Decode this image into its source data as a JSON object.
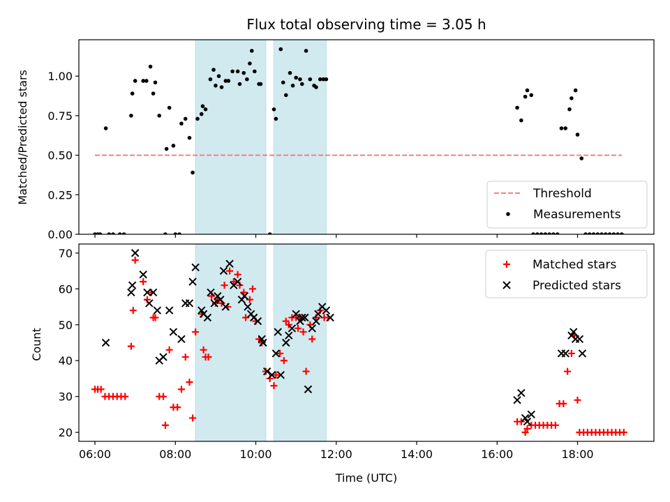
{
  "chart_data": [
    {
      "type": "scatter",
      "title": "Flux total observing time = 3.05 h",
      "ylabel": "Matched/Predicted stars",
      "xlim": [
        5.6,
        19.9
      ],
      "ylim": [
        0,
        1.23
      ],
      "yticks": [
        0.0,
        0.25,
        0.5,
        0.75,
        1.0
      ],
      "ytick_labels": [
        "0.00",
        "0.25",
        "0.50",
        "0.75",
        "1.00"
      ],
      "xticks": [
        6,
        8,
        10,
        12,
        14,
        16,
        18
      ],
      "shaded_intervals": [
        [
          8.5,
          10.25
        ],
        [
          10.45,
          11.75
        ]
      ],
      "shade_color": "#d1eaf0",
      "legend_position": "lower-right",
      "threshold": {
        "name": "Threshold",
        "x": [
          6.0,
          19.1
        ],
        "y": 0.5,
        "color": "#f08080"
      },
      "series": [
        {
          "name": "Measurements",
          "color": "#000000",
          "points": [
            [
              6.0,
              0
            ],
            [
              6.07,
              0
            ],
            [
              6.13,
              0
            ],
            [
              6.27,
              0.67
            ],
            [
              6.35,
              0
            ],
            [
              6.45,
              0
            ],
            [
              6.62,
              0
            ],
            [
              6.72,
              0
            ],
            [
              6.9,
              0.75
            ],
            [
              6.93,
              0.89
            ],
            [
              7.0,
              0.97
            ],
            [
              7.2,
              0.97
            ],
            [
              7.28,
              0.97
            ],
            [
              7.38,
              1.06
            ],
            [
              7.45,
              0.89
            ],
            [
              7.5,
              0.96
            ],
            [
              7.6,
              0.75
            ],
            [
              7.75,
              0
            ],
            [
              7.78,
              0.54
            ],
            [
              7.85,
              0.8
            ],
            [
              7.95,
              0.56
            ],
            [
              8.0,
              0
            ],
            [
              8.1,
              0
            ],
            [
              8.15,
              0.7
            ],
            [
              8.25,
              0.73
            ],
            [
              8.35,
              0.61
            ],
            [
              8.43,
              0.39
            ],
            [
              8.55,
              0.73
            ],
            [
              8.65,
              0.76
            ],
            [
              8.68,
              0.81
            ],
            [
              8.75,
              0.79
            ],
            [
              8.87,
              0.98
            ],
            [
              8.95,
              1.04
            ],
            [
              9.0,
              0.94
            ],
            [
              9.08,
              1.0
            ],
            [
              9.15,
              0.93
            ],
            [
              9.25,
              0.97
            ],
            [
              9.32,
              0.97
            ],
            [
              9.42,
              1.03
            ],
            [
              9.55,
              1.03
            ],
            [
              9.6,
              0.95
            ],
            [
              9.7,
              1.02
            ],
            [
              9.78,
              0.98
            ],
            [
              9.85,
              1.08
            ],
            [
              9.9,
              1.16
            ],
            [
              9.97,
              1.03
            ],
            [
              10.08,
              0.95
            ],
            [
              10.12,
              0.95
            ],
            [
              10.35,
              0
            ],
            [
              10.45,
              0.79
            ],
            [
              10.5,
              0.73
            ],
            [
              10.62,
              1.17
            ],
            [
              10.68,
              0.96
            ],
            [
              10.75,
              0.88
            ],
            [
              10.85,
              1.02
            ],
            [
              10.92,
              0.94
            ],
            [
              11.0,
              0.99
            ],
            [
              11.1,
              0.98
            ],
            [
              11.15,
              0.95
            ],
            [
              11.25,
              1.16
            ],
            [
              11.35,
              0.98
            ],
            [
              11.45,
              0.94
            ],
            [
              11.5,
              0.93
            ],
            [
              11.6,
              0.98
            ],
            [
              11.68,
              0.98
            ],
            [
              11.75,
              0.98
            ],
            [
              16.5,
              0.8
            ],
            [
              16.6,
              0.72
            ],
            [
              16.7,
              0.87
            ],
            [
              16.75,
              0.91
            ],
            [
              16.85,
              0.88
            ],
            [
              16.9,
              0
            ],
            [
              17.0,
              0
            ],
            [
              17.1,
              0
            ],
            [
              17.2,
              0
            ],
            [
              17.3,
              0
            ],
            [
              17.4,
              0
            ],
            [
              17.5,
              0
            ],
            [
              17.6,
              0.67
            ],
            [
              17.7,
              0.67
            ],
            [
              17.8,
              0.79
            ],
            [
              17.85,
              0.86
            ],
            [
              17.95,
              0.91
            ],
            [
              18.0,
              0.63
            ],
            [
              18.1,
              0.48
            ],
            [
              18.2,
              0
            ],
            [
              18.3,
              0
            ],
            [
              18.4,
              0
            ],
            [
              18.5,
              0
            ],
            [
              18.6,
              0
            ],
            [
              18.7,
              0
            ],
            [
              18.8,
              0
            ],
            [
              18.9,
              0
            ],
            [
              19.0,
              0
            ],
            [
              19.1,
              0
            ]
          ]
        }
      ]
    },
    {
      "type": "scatter",
      "xlabel": "Time (UTC)",
      "ylabel": "Count",
      "xlim": [
        5.6,
        19.9
      ],
      "ylim": [
        17.5,
        72.5
      ],
      "yticks": [
        20,
        30,
        40,
        50,
        60,
        70
      ],
      "xticks": [
        6,
        8,
        10,
        12,
        14,
        16,
        18
      ],
      "xtick_labels": [
        "06:00",
        "08:00",
        "10:00",
        "12:00",
        "14:00",
        "16:00",
        "18:00"
      ],
      "shaded_intervals": [
        [
          8.5,
          10.25
        ],
        [
          10.45,
          11.75
        ]
      ],
      "shade_color": "#d1eaf0",
      "legend_position": "upper-right",
      "series": [
        {
          "name": "Matched stars",
          "color": "#ff0000",
          "marker": "plus",
          "points": [
            [
              6.0,
              32
            ],
            [
              6.07,
              32
            ],
            [
              6.15,
              32
            ],
            [
              6.25,
              30
            ],
            [
              6.35,
              30
            ],
            [
              6.45,
              30
            ],
            [
              6.55,
              30
            ],
            [
              6.65,
              30
            ],
            [
              6.75,
              30
            ],
            [
              6.9,
              44
            ],
            [
              6.95,
              54
            ],
            [
              7.0,
              68
            ],
            [
              7.2,
              62
            ],
            [
              7.3,
              57
            ],
            [
              7.4,
              59
            ],
            [
              7.45,
              52
            ],
            [
              7.5,
              52
            ],
            [
              7.6,
              30
            ],
            [
              7.7,
              30
            ],
            [
              7.75,
              22
            ],
            [
              7.85,
              43
            ],
            [
              7.95,
              27
            ],
            [
              8.05,
              27
            ],
            [
              8.15,
              32
            ],
            [
              8.25,
              41
            ],
            [
              8.35,
              34
            ],
            [
              8.43,
              24
            ],
            [
              8.5,
              48
            ],
            [
              8.65,
              53
            ],
            [
              8.7,
              43
            ],
            [
              8.75,
              41
            ],
            [
              8.82,
              41
            ],
            [
              8.9,
              58
            ],
            [
              9.0,
              56
            ],
            [
              9.05,
              57
            ],
            [
              9.15,
              56
            ],
            [
              9.22,
              61
            ],
            [
              9.3,
              55
            ],
            [
              9.35,
              65
            ],
            [
              9.45,
              62
            ],
            [
              9.55,
              64
            ],
            [
              9.6,
              61
            ],
            [
              9.7,
              59
            ],
            [
              9.75,
              52
            ],
            [
              9.85,
              57
            ],
            [
              9.92,
              60
            ],
            [
              10.0,
              51
            ],
            [
              10.08,
              46
            ],
            [
              10.15,
              45
            ],
            [
              10.25,
              37
            ],
            [
              10.35,
              35
            ],
            [
              10.45,
              33
            ],
            [
              10.5,
              36
            ],
            [
              10.6,
              42
            ],
            [
              10.7,
              40
            ],
            [
              10.75,
              51
            ],
            [
              10.82,
              50
            ],
            [
              10.9,
              52
            ],
            [
              11.0,
              52
            ],
            [
              11.05,
              49
            ],
            [
              11.1,
              52
            ],
            [
              11.18,
              48
            ],
            [
              11.25,
              37
            ],
            [
              11.35,
              50
            ],
            [
              11.4,
              46
            ],
            [
              11.5,
              52
            ],
            [
              11.6,
              54
            ],
            [
              11.7,
              52
            ],
            [
              11.8,
              52
            ],
            [
              16.5,
              23
            ],
            [
              16.6,
              23
            ],
            [
              16.7,
              20
            ],
            [
              16.75,
              21
            ],
            [
              16.85,
              22
            ],
            [
              16.95,
              22
            ],
            [
              17.05,
              22
            ],
            [
              17.15,
              22
            ],
            [
              17.25,
              22
            ],
            [
              17.35,
              22
            ],
            [
              17.45,
              22
            ],
            [
              17.55,
              28
            ],
            [
              17.65,
              28
            ],
            [
              17.75,
              37
            ],
            [
              17.85,
              42
            ],
            [
              17.92,
              47
            ],
            [
              18.0,
              29
            ],
            [
              18.05,
              20
            ],
            [
              18.15,
              20
            ],
            [
              18.25,
              20
            ],
            [
              18.35,
              20
            ],
            [
              18.45,
              20
            ],
            [
              18.55,
              20
            ],
            [
              18.65,
              20
            ],
            [
              18.75,
              20
            ],
            [
              18.85,
              20
            ],
            [
              18.95,
              20
            ],
            [
              19.05,
              20
            ],
            [
              19.15,
              20
            ]
          ]
        },
        {
          "name": "Predicted stars",
          "color": "#000000",
          "marker": "x",
          "points": [
            [
              6.27,
              45
            ],
            [
              6.9,
              59
            ],
            [
              6.93,
              61
            ],
            [
              7.0,
              70
            ],
            [
              7.2,
              64
            ],
            [
              7.3,
              59
            ],
            [
              7.35,
              56
            ],
            [
              7.45,
              59
            ],
            [
              7.55,
              54
            ],
            [
              7.6,
              40
            ],
            [
              7.7,
              41
            ],
            [
              7.85,
              54
            ],
            [
              7.95,
              48
            ],
            [
              8.15,
              46
            ],
            [
              8.25,
              56
            ],
            [
              8.35,
              56
            ],
            [
              8.43,
              62
            ],
            [
              8.5,
              66
            ],
            [
              8.65,
              54
            ],
            [
              8.7,
              53
            ],
            [
              8.8,
              52
            ],
            [
              8.88,
              59
            ],
            [
              8.97,
              56
            ],
            [
              9.05,
              58
            ],
            [
              9.12,
              57
            ],
            [
              9.2,
              65
            ],
            [
              9.25,
              55
            ],
            [
              9.35,
              67
            ],
            [
              9.45,
              61
            ],
            [
              9.55,
              62
            ],
            [
              9.65,
              57
            ],
            [
              9.72,
              58
            ],
            [
              9.8,
              55
            ],
            [
              9.88,
              53
            ],
            [
              9.95,
              52
            ],
            [
              10.05,
              51
            ],
            [
              10.15,
              46
            ],
            [
              10.18,
              45
            ],
            [
              10.28,
              37
            ],
            [
              10.4,
              36
            ],
            [
              10.5,
              42
            ],
            [
              10.55,
              48
            ],
            [
              10.62,
              36
            ],
            [
              10.75,
              45
            ],
            [
              10.82,
              47
            ],
            [
              10.9,
              49
            ],
            [
              11.0,
              53
            ],
            [
              11.1,
              51
            ],
            [
              11.15,
              52
            ],
            [
              11.22,
              52
            ],
            [
              11.3,
              32
            ],
            [
              11.4,
              49
            ],
            [
              11.5,
              51
            ],
            [
              11.55,
              53
            ],
            [
              11.65,
              55
            ],
            [
              11.75,
              54
            ],
            [
              11.85,
              52
            ],
            [
              16.5,
              29
            ],
            [
              16.6,
              31
            ],
            [
              16.7,
              24
            ],
            [
              16.75,
              23
            ],
            [
              16.85,
              25
            ],
            [
              17.6,
              42
            ],
            [
              17.7,
              42
            ],
            [
              17.85,
              47
            ],
            [
              17.9,
              48
            ],
            [
              17.95,
              46
            ],
            [
              18.05,
              46
            ],
            [
              18.12,
              42
            ]
          ]
        }
      ]
    }
  ]
}
